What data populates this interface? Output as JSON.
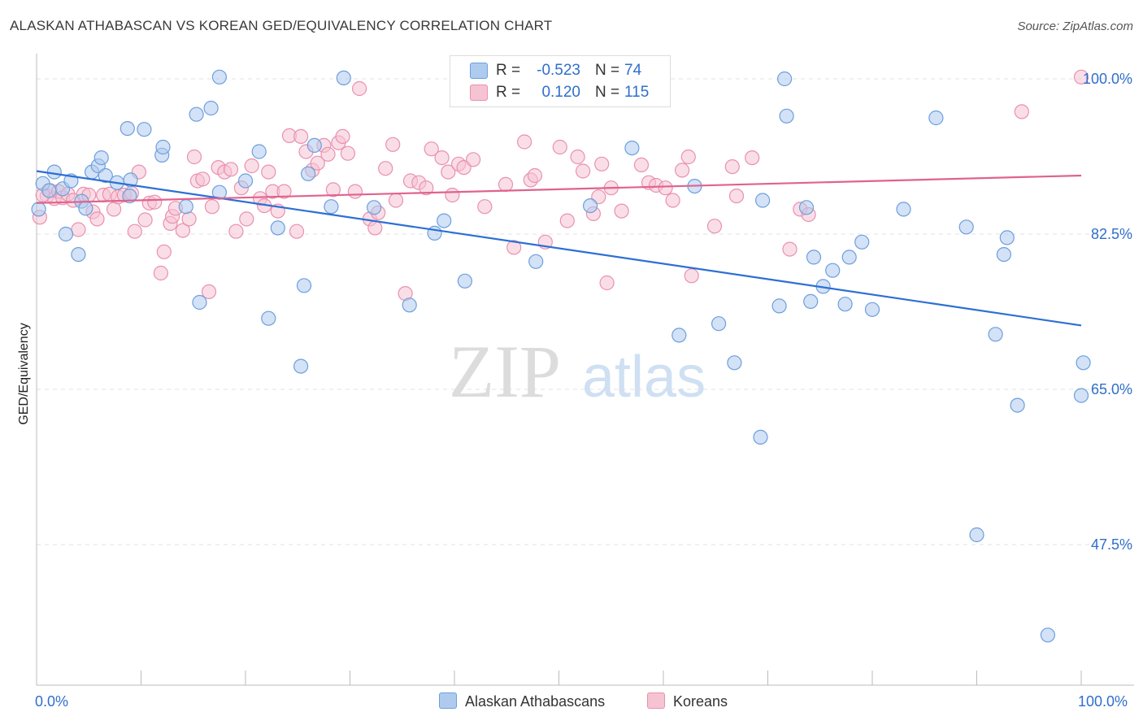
{
  "header": {
    "title": "ALASKAN ATHABASCAN VS KOREAN GED/EQUIVALENCY CORRELATION CHART",
    "source": "Source: ZipAtlas.com"
  },
  "watermark": {
    "zip": "ZIP",
    "atlas": "atlas"
  },
  "legend": {
    "rows": [
      {
        "r_label": "R =",
        "r_value": "-0.523",
        "n_label": "N =",
        "n_value": "74"
      },
      {
        "r_label": "R =",
        "r_value": "0.120",
        "n_label": "N =",
        "n_value": "115"
      }
    ]
  },
  "bottom_legend": {
    "series1": "Alaskan Athabascans",
    "series2": "Koreans"
  },
  "x_labels": {
    "left": "0.0%",
    "right": "100.0%"
  },
  "colors": {
    "blue_fill": "#aecbef",
    "blue_stroke": "#6d9fdc",
    "blue_line": "#2d6fd4",
    "pink_fill": "#f6c3d3",
    "pink_stroke": "#e991ad",
    "pink_line": "#e0628e",
    "axis_text": "#2f6fcc",
    "grid": "#e2e2e2"
  },
  "chart_data": {
    "type": "scatter",
    "title": "ALASKAN ATHABASCAN VS KOREAN GED/EQUIVALENCY CORRELATION CHART",
    "xlabel": "",
    "ylabel": "GED/Equivalency",
    "xlim": [
      0,
      100
    ],
    "ylim": [
      31.0,
      102.0
    ],
    "x_tick_labels": [
      "0.0%",
      "100.0%"
    ],
    "y_ticks": [
      47.5,
      65.0,
      82.5,
      100.0
    ],
    "y_tick_labels": [
      "47.5%",
      "65.0%",
      "82.5%",
      "100.0%"
    ],
    "grid": true,
    "legend_position": "top-center",
    "series": [
      {
        "name": "Alaskan Athabascans",
        "r": -0.523,
        "n": 74,
        "trend": [
          [
            0,
            89.6
          ],
          [
            100,
            72.2
          ]
        ],
        "points": [
          [
            0.2,
            85.3
          ],
          [
            0.6,
            88.2
          ],
          [
            1.2,
            87.4
          ],
          [
            1.7,
            89.5
          ],
          [
            2.5,
            87.6
          ],
          [
            2.8,
            82.5
          ],
          [
            3.3,
            88.5
          ],
          [
            4.0,
            80.2
          ],
          [
            4.3,
            86.2
          ],
          [
            4.7,
            85.4
          ],
          [
            5.3,
            89.5
          ],
          [
            5.9,
            90.2
          ],
          [
            6.2,
            91.1
          ],
          [
            6.6,
            89.1
          ],
          [
            7.7,
            88.3
          ],
          [
            8.7,
            94.4
          ],
          [
            8.9,
            86.8
          ],
          [
            9.0,
            88.6
          ],
          [
            10.3,
            94.3
          ],
          [
            12.0,
            91.4
          ],
          [
            12.1,
            92.3
          ],
          [
            14.3,
            85.6
          ],
          [
            15.3,
            96.0
          ],
          [
            15.6,
            74.8
          ],
          [
            16.7,
            96.7
          ],
          [
            17.5,
            87.2
          ],
          [
            17.5,
            100.2
          ],
          [
            20.0,
            88.5
          ],
          [
            21.3,
            91.8
          ],
          [
            22.2,
            73.0
          ],
          [
            23.1,
            83.2
          ],
          [
            25.3,
            67.6
          ],
          [
            25.6,
            76.7
          ],
          [
            26.0,
            89.3
          ],
          [
            26.6,
            92.5
          ],
          [
            28.2,
            85.6
          ],
          [
            29.4,
            100.1
          ],
          [
            32.3,
            85.5
          ],
          [
            35.7,
            74.5
          ],
          [
            38.1,
            82.6
          ],
          [
            39.0,
            84.0
          ],
          [
            41.0,
            77.2
          ],
          [
            47.8,
            79.4
          ],
          [
            53.0,
            85.7
          ],
          [
            57.0,
            92.2
          ],
          [
            61.5,
            71.1
          ],
          [
            63.0,
            87.9
          ],
          [
            65.3,
            72.4
          ],
          [
            66.8,
            68.0
          ],
          [
            69.3,
            59.6
          ],
          [
            69.5,
            86.3
          ],
          [
            71.1,
            74.4
          ],
          [
            71.6,
            100.0
          ],
          [
            71.8,
            95.8
          ],
          [
            73.7,
            85.5
          ],
          [
            74.1,
            74.9
          ],
          [
            74.4,
            79.9
          ],
          [
            75.3,
            76.6
          ],
          [
            76.2,
            78.4
          ],
          [
            77.4,
            74.6
          ],
          [
            77.8,
            79.9
          ],
          [
            79.0,
            81.6
          ],
          [
            80.0,
            74.0
          ],
          [
            83.0,
            85.3
          ],
          [
            86.1,
            95.6
          ],
          [
            89.0,
            83.3
          ],
          [
            90.0,
            48.6
          ],
          [
            91.8,
            71.2
          ],
          [
            92.6,
            80.2
          ],
          [
            92.9,
            82.1
          ],
          [
            93.9,
            63.2
          ],
          [
            96.8,
            37.3
          ],
          [
            100.0,
            64.3
          ],
          [
            100.2,
            68.0
          ]
        ]
      },
      {
        "name": "Koreans",
        "r": 0.12,
        "n": 115,
        "trend": [
          [
            0,
            86.0
          ],
          [
            100,
            89.1
          ]
        ],
        "points": [
          [
            0.3,
            84.4
          ],
          [
            1.0,
            86.8
          ],
          [
            1.3,
            87.4
          ],
          [
            1.7,
            86.5
          ],
          [
            2.1,
            87.3
          ],
          [
            2.5,
            86.6
          ],
          [
            3.0,
            87.0
          ],
          [
            3.5,
            86.3
          ],
          [
            4.0,
            83.0
          ],
          [
            4.5,
            87.0
          ],
          [
            5.0,
            86.9
          ],
          [
            5.4,
            85.0
          ],
          [
            5.8,
            84.2
          ],
          [
            6.4,
            86.9
          ],
          [
            7.0,
            87.0
          ],
          [
            7.4,
            85.3
          ],
          [
            7.8,
            86.7
          ],
          [
            8.4,
            86.9
          ],
          [
            9.1,
            87.1
          ],
          [
            9.4,
            82.8
          ],
          [
            9.8,
            89.5
          ],
          [
            10.4,
            84.1
          ],
          [
            10.8,
            86.0
          ],
          [
            11.3,
            86.1
          ],
          [
            11.9,
            78.1
          ],
          [
            12.2,
            80.5
          ],
          [
            12.8,
            83.7
          ],
          [
            13.0,
            84.5
          ],
          [
            13.3,
            85.4
          ],
          [
            14.0,
            82.9
          ],
          [
            14.6,
            84.2
          ],
          [
            15.1,
            91.2
          ],
          [
            15.4,
            88.5
          ],
          [
            15.9,
            88.7
          ],
          [
            16.5,
            76.0
          ],
          [
            16.8,
            85.6
          ],
          [
            17.4,
            90.0
          ],
          [
            18.0,
            89.5
          ],
          [
            18.6,
            89.8
          ],
          [
            19.1,
            82.8
          ],
          [
            19.6,
            87.7
          ],
          [
            20.1,
            84.2
          ],
          [
            20.6,
            90.2
          ],
          [
            21.4,
            86.5
          ],
          [
            21.8,
            85.7
          ],
          [
            22.2,
            89.5
          ],
          [
            22.6,
            87.3
          ],
          [
            23.1,
            85.1
          ],
          [
            23.7,
            87.3
          ],
          [
            24.2,
            93.6
          ],
          [
            24.9,
            82.8
          ],
          [
            25.3,
            93.5
          ],
          [
            25.8,
            91.8
          ],
          [
            26.4,
            89.7
          ],
          [
            26.9,
            90.5
          ],
          [
            27.5,
            92.5
          ],
          [
            27.9,
            91.5
          ],
          [
            28.4,
            87.5
          ],
          [
            28.9,
            92.8
          ],
          [
            29.3,
            93.5
          ],
          [
            29.8,
            91.6
          ],
          [
            30.5,
            87.3
          ],
          [
            30.9,
            98.9
          ],
          [
            31.9,
            84.2
          ],
          [
            32.4,
            83.2
          ],
          [
            32.7,
            84.9
          ],
          [
            33.4,
            89.9
          ],
          [
            34.1,
            92.6
          ],
          [
            34.4,
            86.3
          ],
          [
            35.3,
            75.8
          ],
          [
            35.8,
            88.5
          ],
          [
            36.6,
            88.3
          ],
          [
            37.3,
            87.7
          ],
          [
            37.8,
            92.1
          ],
          [
            38.8,
            91.1
          ],
          [
            39.4,
            89.5
          ],
          [
            39.8,
            86.9
          ],
          [
            40.4,
            90.4
          ],
          [
            40.9,
            90.0
          ],
          [
            41.8,
            90.9
          ],
          [
            42.9,
            85.6
          ],
          [
            44.9,
            88.1
          ],
          [
            45.7,
            81.0
          ],
          [
            46.7,
            92.9
          ],
          [
            47.3,
            88.6
          ],
          [
            47.7,
            89.1
          ],
          [
            48.7,
            81.6
          ],
          [
            50.1,
            92.3
          ],
          [
            50.8,
            84.0
          ],
          [
            51.8,
            91.2
          ],
          [
            52.3,
            89.6
          ],
          [
            53.3,
            84.8
          ],
          [
            53.8,
            86.7
          ],
          [
            54.1,
            90.4
          ],
          [
            54.6,
            77.0
          ],
          [
            55.0,
            87.7
          ],
          [
            56.0,
            85.1
          ],
          [
            57.9,
            90.3
          ],
          [
            58.6,
            88.3
          ],
          [
            59.3,
            88.0
          ],
          [
            60.2,
            87.7
          ],
          [
            60.9,
            86.3
          ],
          [
            61.8,
            89.7
          ],
          [
            62.4,
            91.2
          ],
          [
            62.7,
            77.8
          ],
          [
            64.9,
            83.4
          ],
          [
            66.6,
            90.1
          ],
          [
            67.0,
            86.8
          ],
          [
            68.5,
            91.1
          ],
          [
            72.1,
            80.8
          ],
          [
            73.1,
            85.3
          ],
          [
            73.9,
            84.7
          ],
          [
            94.3,
            96.3
          ],
          [
            100.0,
            100.2
          ],
          [
            0.6,
            86.9
          ]
        ]
      }
    ]
  }
}
